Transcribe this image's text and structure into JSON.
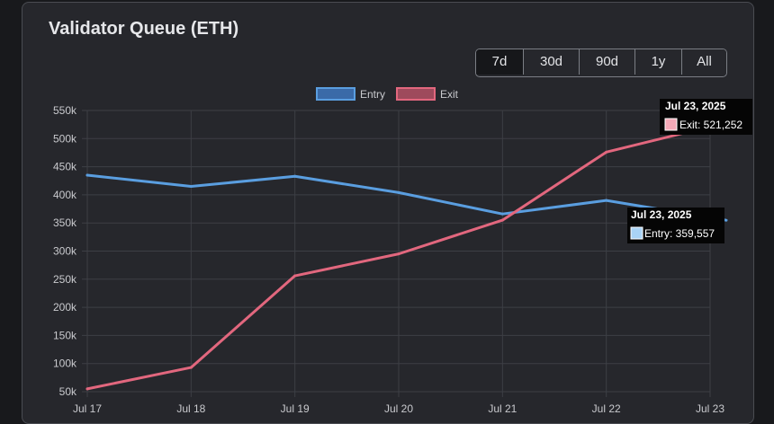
{
  "header": {
    "title": "Validator Queue (ETH)"
  },
  "range_buttons": [
    {
      "label": "7d",
      "active": true
    },
    {
      "label": "30d",
      "active": false
    },
    {
      "label": "90d",
      "active": false
    },
    {
      "label": "1y",
      "active": false
    },
    {
      "label": "All",
      "active": false
    }
  ],
  "colors": {
    "entry_line": "#5a9ee0",
    "entry_fill": "#3a6aa8",
    "exit_line": "#e2677e",
    "exit_fill": "#9e4a5c",
    "grid": "#3d3f45",
    "tooltip_bg": "#050505"
  },
  "tooltips": [
    {
      "title": "Jul 23, 2025",
      "body": "Exit: 521,252",
      "series": "exit",
      "swatch": "#f4a8b6"
    },
    {
      "title": "Jul 23, 2025",
      "body": "Entry: 359,557",
      "series": "entry",
      "swatch": "#a9d3f5"
    }
  ],
  "chart_data": {
    "type": "line",
    "categories": [
      "Jul 17",
      "Jul 18",
      "Jul 19",
      "Jul 20",
      "Jul 21",
      "Jul 22",
      "Jul 23"
    ],
    "series": [
      {
        "name": "Entry",
        "values": [
          435000,
          415000,
          433000,
          404000,
          366000,
          390000,
          359557
        ]
      },
      {
        "name": "Exit",
        "values": [
          55000,
          93000,
          256000,
          295000,
          355000,
          476000,
          521252
        ]
      }
    ],
    "y_ticks": [
      "550k",
      "500k",
      "450k",
      "400k",
      "350k",
      "300k",
      "250k",
      "200k",
      "150k",
      "100k",
      "50k"
    ],
    "ylim": [
      50000,
      550000
    ],
    "grid": true,
    "legend": "top-center"
  }
}
